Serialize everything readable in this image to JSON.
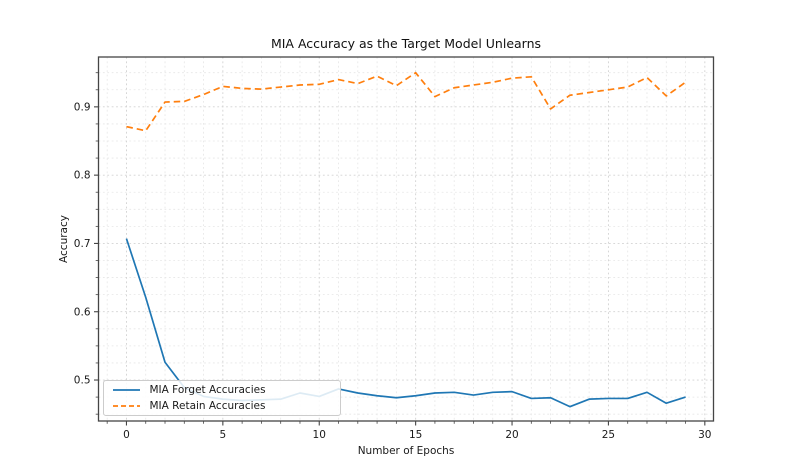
{
  "chart_data": {
    "type": "line",
    "title": "MIA Accuracy as the Target Model Unlearns",
    "xlabel": "Number of Epochs",
    "ylabel": "Accuracy",
    "x": [
      0,
      1,
      2,
      3,
      4,
      5,
      6,
      7,
      8,
      9,
      10,
      11,
      12,
      13,
      14,
      15,
      16,
      17,
      18,
      19,
      20,
      21,
      22,
      23,
      24,
      25,
      26,
      27,
      28,
      29
    ],
    "series": [
      {
        "name": "MIA Forget Accuracies",
        "color": "#1f77b4",
        "line_style": "solid",
        "values": [
          0.707,
          0.621,
          0.526,
          0.489,
          0.476,
          0.472,
          0.47,
          0.471,
          0.472,
          0.481,
          0.476,
          0.487,
          0.481,
          0.477,
          0.474,
          0.477,
          0.481,
          0.482,
          0.478,
          0.482,
          0.483,
          0.473,
          0.474,
          0.461,
          0.472,
          0.473,
          0.473,
          0.482,
          0.466,
          0.475
        ]
      },
      {
        "name": "MIA Retain Accuracies",
        "color": "#ff7f0e",
        "line_style": "dashed",
        "values": [
          0.871,
          0.865,
          0.907,
          0.908,
          0.918,
          0.93,
          0.927,
          0.926,
          0.929,
          0.932,
          0.933,
          0.94,
          0.934,
          0.945,
          0.931,
          0.95,
          0.915,
          0.928,
          0.932,
          0.936,
          0.942,
          0.944,
          0.897,
          0.917,
          0.921,
          0.925,
          0.929,
          0.943,
          0.916,
          0.936
        ]
      }
    ],
    "xlim": [
      -1.45,
      30.45
    ],
    "ylim": [
      0.44,
      0.973
    ],
    "x_major_ticks": [
      0,
      5,
      10,
      15,
      20,
      25,
      30
    ],
    "y_major_ticks": [
      0.5,
      0.6,
      0.7,
      0.8,
      0.9
    ],
    "x_minor_step": 1,
    "y_minor_step": 0.025,
    "grid": "both",
    "legend_position": "lower left",
    "colors": {
      "grid_major": "#d2d2d2",
      "grid_minor": "#e6e6e6",
      "spine": "#454545",
      "tick_text": "#1a1a1a"
    }
  }
}
